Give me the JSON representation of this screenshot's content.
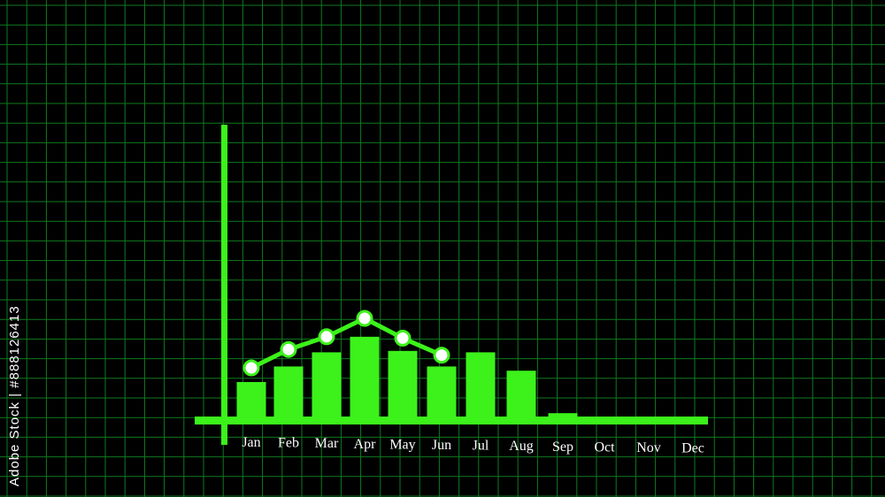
{
  "colors": {
    "background": "#000000",
    "grid": "#0f7a1f",
    "bar": "#3cf21a",
    "axis": "#3cf21a",
    "line": "#3cf21a",
    "marker_fill": "#ffffff",
    "label": "#ffffff"
  },
  "watermark": {
    "stock_id": "Adobe Stock | #888126413",
    "tiled_text": "Adobe Stock"
  },
  "chart_data": {
    "type": "bar",
    "categories": [
      "Jan",
      "Feb",
      "Mar",
      "Apr",
      "May",
      "Jun",
      "Jul",
      "Aug",
      "Sep",
      "Oct",
      "Nov",
      "Dec"
    ],
    "series": [
      {
        "values": [
          25,
          36,
          46,
          57,
          47,
          36,
          46,
          33,
          3,
          0,
          0,
          0
        ]
      }
    ],
    "line_series": {
      "categories": [
        "Jan",
        "Feb",
        "Mar",
        "Apr",
        "May",
        "Jun"
      ],
      "values": [
        35,
        48,
        57,
        70,
        56,
        44
      ]
    },
    "ylim": [
      0,
      120
    ],
    "title": "",
    "xlabel": "",
    "ylabel": "",
    "grid": true,
    "legend": "none"
  }
}
